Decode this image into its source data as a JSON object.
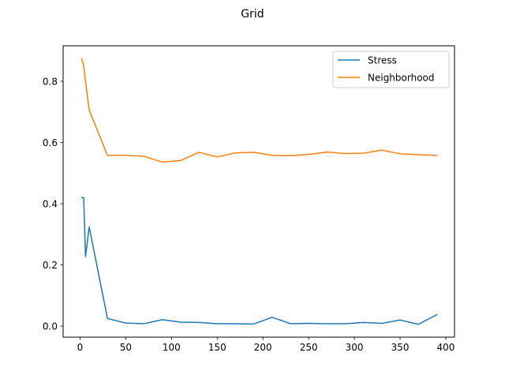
{
  "chart_data": {
    "type": "line",
    "title": "Grid",
    "xlabel": "",
    "ylabel": "",
    "xlim": [
      -18.5,
      409.5
    ],
    "ylim": [
      -0.036,
      0.916
    ],
    "xticks": [
      0,
      50,
      100,
      150,
      200,
      250,
      300,
      350,
      400
    ],
    "yticks": [
      0.0,
      0.2,
      0.4,
      0.6,
      0.8
    ],
    "ytick_labels": [
      "0.0",
      "0.2",
      "0.4",
      "0.6",
      "0.8"
    ],
    "grid": false,
    "legend_position": "top-right",
    "series": [
      {
        "name": "Stress",
        "color": "#1f77b4",
        "x": [
          2,
          4,
          6,
          10,
          30,
          50,
          70,
          90,
          110,
          130,
          150,
          170,
          190,
          210,
          230,
          250,
          270,
          290,
          310,
          330,
          350,
          370,
          390
        ],
        "y": [
          0.42,
          0.42,
          0.227,
          0.324,
          0.025,
          0.01,
          0.008,
          0.021,
          0.013,
          0.012,
          0.008,
          0.008,
          0.007,
          0.029,
          0.008,
          0.009,
          0.008,
          0.008,
          0.012,
          0.009,
          0.02,
          0.006,
          0.037
        ]
      },
      {
        "name": "Neighborhood",
        "color": "#ff7f0e",
        "x": [
          2,
          4,
          6,
          10,
          30,
          50,
          70,
          90,
          110,
          130,
          150,
          170,
          190,
          210,
          230,
          250,
          270,
          290,
          310,
          330,
          350,
          370,
          390
        ],
        "y": [
          0.873,
          0.85,
          0.8,
          0.706,
          0.558,
          0.558,
          0.555,
          0.536,
          0.541,
          0.568,
          0.553,
          0.566,
          0.568,
          0.558,
          0.557,
          0.561,
          0.569,
          0.564,
          0.565,
          0.575,
          0.563,
          0.56,
          0.558
        ]
      }
    ]
  }
}
